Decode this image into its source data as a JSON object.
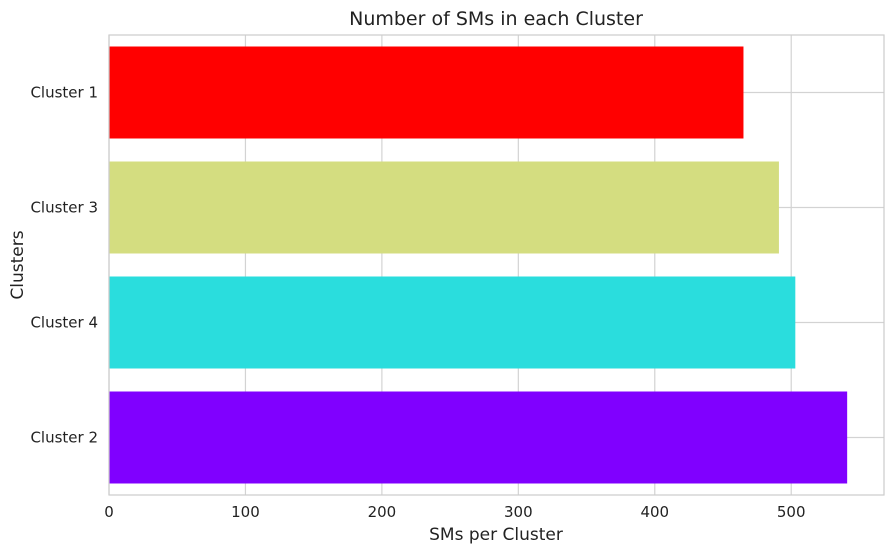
{
  "chart_data": {
    "type": "bar",
    "orientation": "horizontal",
    "title": "Number of SMs in each Cluster",
    "xlabel": "SMs per Cluster",
    "ylabel": "Clusters",
    "categories": [
      "Cluster 1",
      "Cluster 3",
      "Cluster 4",
      "Cluster 2"
    ],
    "values": [
      465,
      491,
      503,
      541
    ],
    "bar_colors": [
      "#ff0000",
      "#d4dd80",
      "#2adddd",
      "#8000ff"
    ],
    "xlim": [
      0,
      568
    ],
    "xticks": [
      0,
      100,
      200,
      300,
      400,
      500
    ],
    "grid": true,
    "legend": "none",
    "colors": {
      "background": "#ffffff",
      "grid": "#d3d3d3",
      "axes_edge": "#cccccc",
      "text": "#222222"
    }
  }
}
